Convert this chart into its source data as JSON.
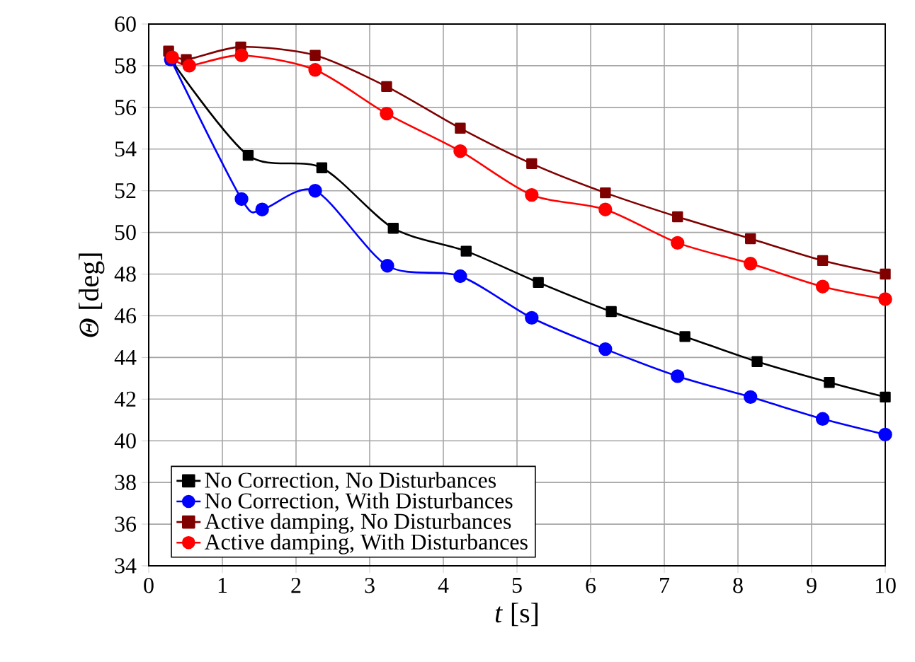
{
  "chart_data": {
    "type": "line",
    "xlabel": "*t* [s]",
    "ylabel": "*Θ* [deg]",
    "xlim": [
      0,
      10
    ],
    "ylim": [
      34,
      60
    ],
    "xticks": [
      0,
      1,
      2,
      3,
      4,
      5,
      6,
      7,
      8,
      9,
      10
    ],
    "yticks": [
      34,
      36,
      38,
      40,
      42,
      44,
      46,
      48,
      50,
      52,
      54,
      56,
      58,
      60
    ],
    "grid": true,
    "legend": "bottom left",
    "line_style": "solid",
    "series": [
      {
        "name": "No Correction, No Disturbances",
        "color": "#000000",
        "marker": "square",
        "x": [
          0.3,
          1.35,
          2.35,
          3.32,
          4.31,
          5.29,
          6.28,
          7.28,
          8.26,
          9.24,
          10
        ],
        "values": [
          58.3,
          53.7,
          53.1,
          50.2,
          49.1,
          47.6,
          46.2,
          45.0,
          43.8,
          42.8,
          42.1
        ]
      },
      {
        "name": "No Correction, With Disturbances",
        "color": "#0000ff",
        "marker": "circle",
        "x": [
          0.3,
          1.26,
          1.54,
          2.26,
          3.24,
          4.23,
          5.2,
          6.2,
          7.18,
          8.17,
          9.15,
          10
        ],
        "values": [
          58.3,
          51.6,
          51.1,
          52.0,
          48.4,
          47.9,
          45.9,
          44.4,
          43.1,
          42.1,
          41.05,
          40.3
        ]
      },
      {
        "name": "Active damping, No Disturbances",
        "color": "#800000",
        "marker": "square",
        "x": [
          0.27,
          0.51,
          1.25,
          2.26,
          3.23,
          4.23,
          5.2,
          6.2,
          7.18,
          8.17,
          9.15,
          10
        ],
        "values": [
          58.7,
          58.3,
          58.9,
          58.5,
          57.0,
          55.0,
          53.3,
          51.9,
          50.75,
          49.7,
          48.65,
          48.0
        ]
      },
      {
        "name": "Active damping, With Disturbances",
        "color": "#ff0000",
        "marker": "circle",
        "x": [
          0.32,
          0.55,
          1.26,
          2.26,
          3.23,
          4.23,
          5.2,
          6.2,
          7.18,
          8.17,
          9.15,
          10
        ],
        "values": [
          58.4,
          58.0,
          58.5,
          57.8,
          55.7,
          53.9,
          51.8,
          51.1,
          49.5,
          48.5,
          47.4,
          46.8
        ]
      }
    ]
  }
}
